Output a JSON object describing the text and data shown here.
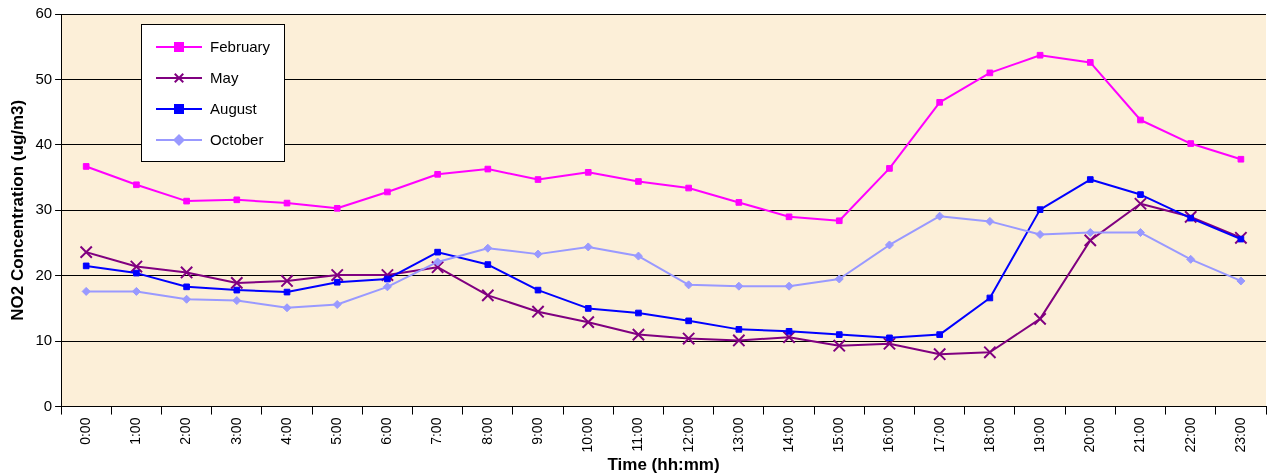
{
  "chart_data": {
    "type": "line",
    "xlabel": "Time (hh:mm)",
    "ylabel": "NO2 Concentration (ug/m3)",
    "categories": [
      "0:00",
      "1:00",
      "2:00",
      "3:00",
      "4:00",
      "5:00",
      "6:00",
      "7:00",
      "8:00",
      "9:00",
      "10:00",
      "11:00",
      "12:00",
      "13:00",
      "14:00",
      "15:00",
      "16:00",
      "17:00",
      "18:00",
      "19:00",
      "20:00",
      "21:00",
      "22:00",
      "23:00"
    ],
    "series": [
      {
        "name": "February",
        "color": "#ff00ff",
        "marker": "square",
        "values": [
          36.7,
          33.9,
          31.4,
          31.6,
          31.1,
          30.3,
          32.8,
          35.5,
          36.3,
          34.7,
          35.8,
          34.4,
          33.4,
          31.2,
          29,
          28.4,
          36.4,
          46.5,
          51,
          53.7,
          52.6,
          43.8,
          40.2,
          37.8
        ]
      },
      {
        "name": "May",
        "color": "#800080",
        "marker": "cross",
        "values": [
          23.6,
          21.4,
          20.5,
          18.9,
          19.2,
          20.1,
          20.1,
          21.3,
          17,
          14.5,
          12.9,
          11,
          10.4,
          10.1,
          10.6,
          9.3,
          9.6,
          8,
          8.3,
          13.4,
          25.4,
          31,
          29,
          25.8
        ]
      },
      {
        "name": "August",
        "color": "#0000ff",
        "marker": "square",
        "values": [
          21.5,
          20.4,
          18.3,
          17.8,
          17.5,
          19,
          19.5,
          23.6,
          21.7,
          17.8,
          15,
          14.3,
          13.1,
          11.8,
          11.5,
          11,
          10.5,
          11,
          16.6,
          30.1,
          34.7,
          32.4,
          28.8,
          25.6
        ]
      },
      {
        "name": "October",
        "color": "#9999ff",
        "marker": "diamond",
        "values": [
          17.6,
          17.6,
          16.4,
          16.2,
          15.1,
          15.6,
          18.3,
          22.1,
          24.2,
          23.3,
          24.4,
          23,
          18.6,
          18.4,
          18.4,
          19.5,
          24.7,
          29.1,
          28.3,
          26.3,
          26.6,
          26.6,
          22.5,
          19.2
        ]
      }
    ],
    "ylim": [
      0,
      60
    ],
    "yticks": [
      0,
      10,
      20,
      30,
      40,
      50,
      60
    ],
    "grid": "y",
    "legend": "top left",
    "line_style": "solid"
  }
}
